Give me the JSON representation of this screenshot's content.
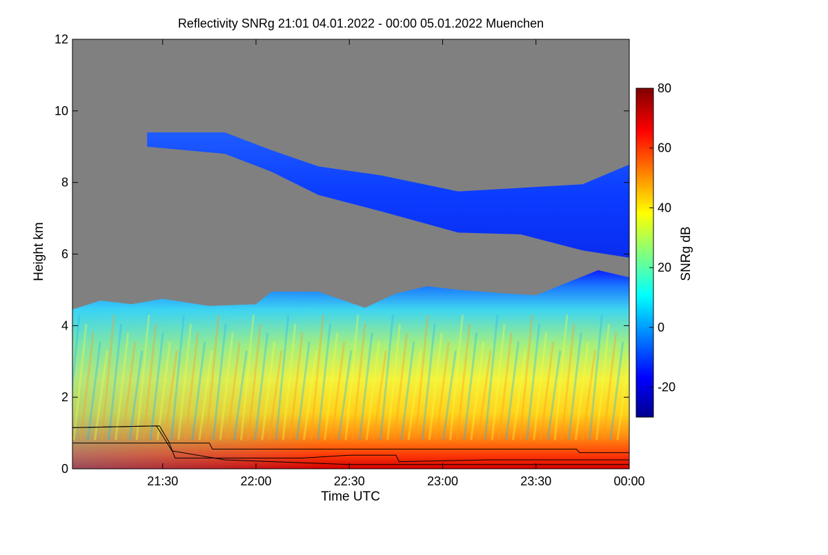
{
  "chart_data": {
    "type": "heatmap",
    "title": "Reflectivity SNRg   21:01 04.01.2022 - 00:00 05.01.2022 Muenchen",
    "xlabel": "Time UTC",
    "ylabel": "Height km",
    "colorbar_label": "SNRg dB",
    "x_range": [
      "21:01",
      "00:00"
    ],
    "x_ticks": [
      "21:30",
      "22:00",
      "22:30",
      "23:00",
      "23:30",
      "00:00"
    ],
    "ylim": [
      0,
      12
    ],
    "y_ticks": [
      0,
      2,
      4,
      6,
      8,
      10,
      12
    ],
    "colorbar_range": [
      -30,
      80
    ],
    "colorbar_ticks": [
      -20,
      0,
      20,
      40,
      60,
      80
    ],
    "colormap": "jet",
    "background_color": "#808080",
    "lower_cloud": {
      "description_values": "precipitation echo",
      "top_km_at": [
        {
          "t": "21:01",
          "h": 4.45
        },
        {
          "t": "21:10",
          "h": 4.7
        },
        {
          "t": "21:20",
          "h": 4.6
        },
        {
          "t": "21:30",
          "h": 4.75
        },
        {
          "t": "21:45",
          "h": 4.55
        },
        {
          "t": "22:00",
          "h": 4.6
        },
        {
          "t": "22:05",
          "h": 4.95
        },
        {
          "t": "22:20",
          "h": 4.95
        },
        {
          "t": "22:35",
          "h": 4.5
        },
        {
          "t": "22:45",
          "h": 4.9
        },
        {
          "t": "22:55",
          "h": 5.1
        },
        {
          "t": "23:05",
          "h": 5.0
        },
        {
          "t": "23:20",
          "h": 4.9
        },
        {
          "t": "23:30",
          "h": 4.85
        },
        {
          "t": "23:40",
          "h": 5.2
        },
        {
          "t": "23:50",
          "h": 5.55
        },
        {
          "t": "00:00",
          "h": 5.35
        }
      ]
    },
    "upper_cloud": {
      "top_km_at": [
        {
          "t": "21:25",
          "h": 9.4
        },
        {
          "t": "21:50",
          "h": 9.4
        },
        {
          "t": "22:05",
          "h": 8.9
        },
        {
          "t": "22:20",
          "h": 8.45
        },
        {
          "t": "22:40",
          "h": 8.2
        },
        {
          "t": "23:05",
          "h": 7.75
        },
        {
          "t": "23:25",
          "h": 7.85
        },
        {
          "t": "23:45",
          "h": 7.95
        },
        {
          "t": "00:00",
          "h": 8.5
        }
      ],
      "base_km_at": [
        {
          "t": "21:25",
          "h": 9.0
        },
        {
          "t": "21:50",
          "h": 8.8
        },
        {
          "t": "22:05",
          "h": 8.3
        },
        {
          "t": "22:20",
          "h": 7.65
        },
        {
          "t": "22:40",
          "h": 7.2
        },
        {
          "t": "23:05",
          "h": 6.6
        },
        {
          "t": "23:25",
          "h": 6.55
        },
        {
          "t": "23:45",
          "h": 6.1
        },
        {
          "t": "00:00",
          "h": 5.9
        }
      ]
    },
    "overlay_lines": [
      {
        "points": [
          {
            "t": "21:01",
            "h": 1.15
          },
          {
            "t": "21:29",
            "h": 1.2
          },
          {
            "t": "21:32",
            "h": 0.75
          },
          {
            "t": "21:34",
            "h": 0.3
          },
          {
            "t": "22:15",
            "h": 0.3
          },
          {
            "t": "22:30",
            "h": 0.38
          },
          {
            "t": "22:45",
            "h": 0.38
          },
          {
            "t": "22:46",
            "h": 0.2
          },
          {
            "t": "23:15",
            "h": 0.25
          },
          {
            "t": "23:43",
            "h": 0.25
          },
          {
            "t": "00:00",
            "h": 0.25
          }
        ]
      },
      {
        "points": [
          {
            "t": "21:01",
            "h": 0.72
          },
          {
            "t": "21:45",
            "h": 0.72
          },
          {
            "t": "21:46",
            "h": 0.55
          },
          {
            "t": "23:43",
            "h": 0.55
          },
          {
            "t": "23:44",
            "h": 0.45
          },
          {
            "t": "00:00",
            "h": 0.45
          }
        ]
      },
      {
        "points": [
          {
            "t": "21:01",
            "h": 1.15
          },
          {
            "t": "21:28",
            "h": 1.2
          },
          {
            "t": "21:33",
            "h": 0.5
          },
          {
            "t": "21:50",
            "h": 0.25
          },
          {
            "t": "22:30",
            "h": 0.12
          },
          {
            "t": "23:00",
            "h": 0.12
          },
          {
            "t": "00:00",
            "h": 0.12
          }
        ]
      }
    ]
  }
}
